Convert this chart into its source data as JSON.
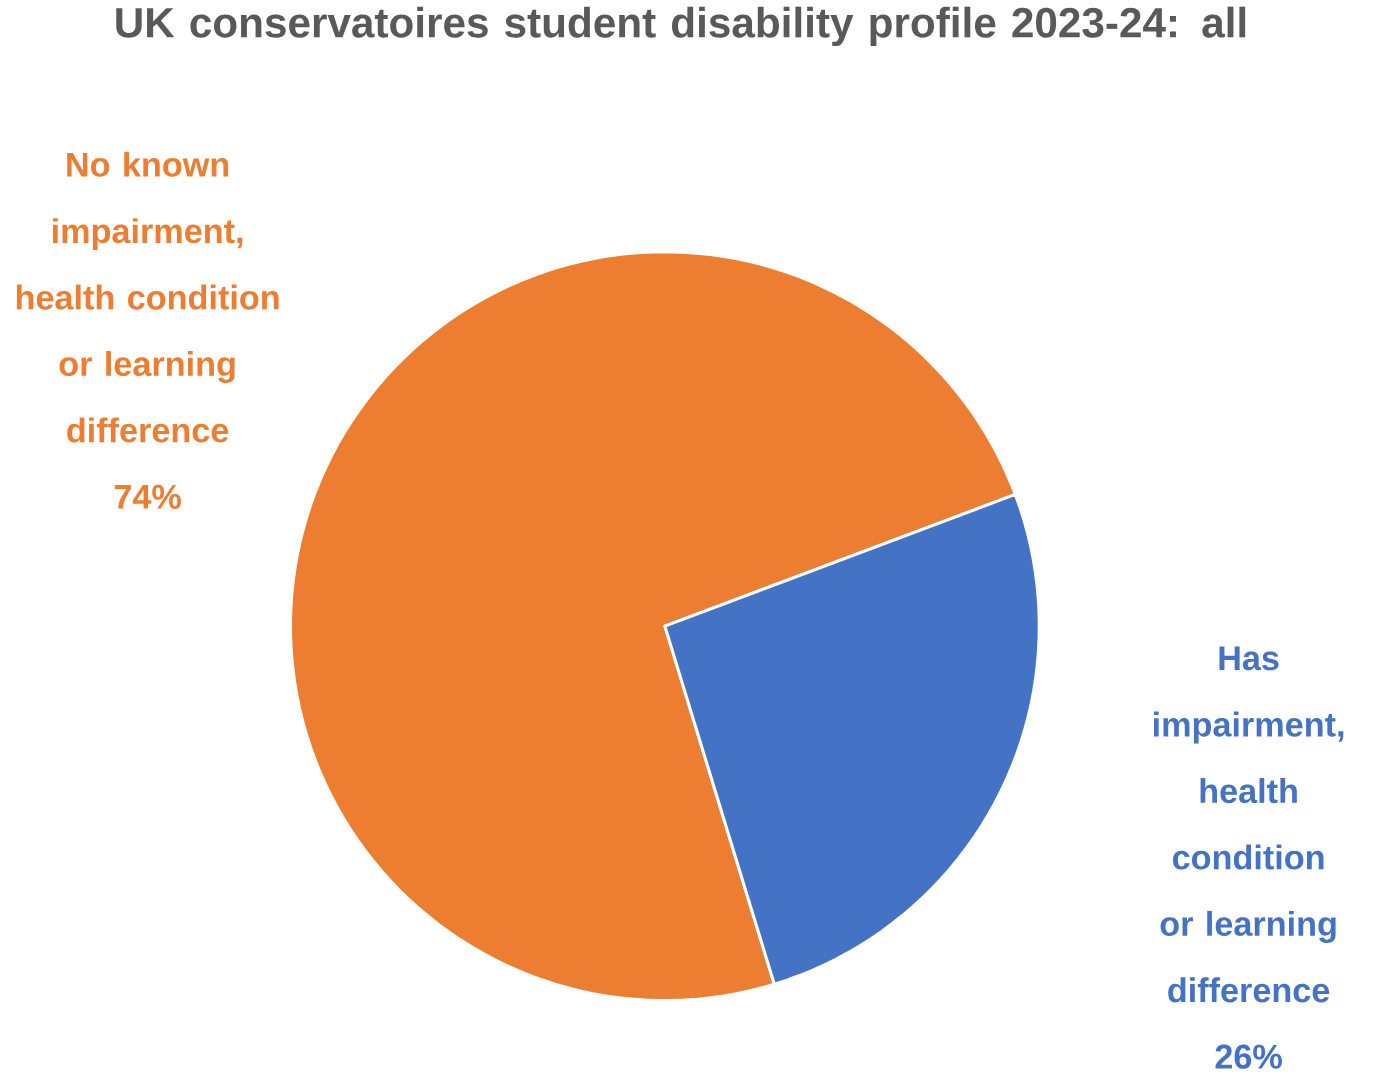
{
  "chart_data": {
    "type": "pie",
    "title": "UK conservatoires student disability profile 2023-24: all",
    "categories": [
      "No known impairment, health condition or learning difference",
      "Has impairment, health condition or learning difference"
    ],
    "values": [
      74,
      26
    ],
    "colors": [
      "#ed7d31",
      "#4472c4"
    ],
    "value_labels": [
      "74%",
      "26%"
    ]
  }
}
